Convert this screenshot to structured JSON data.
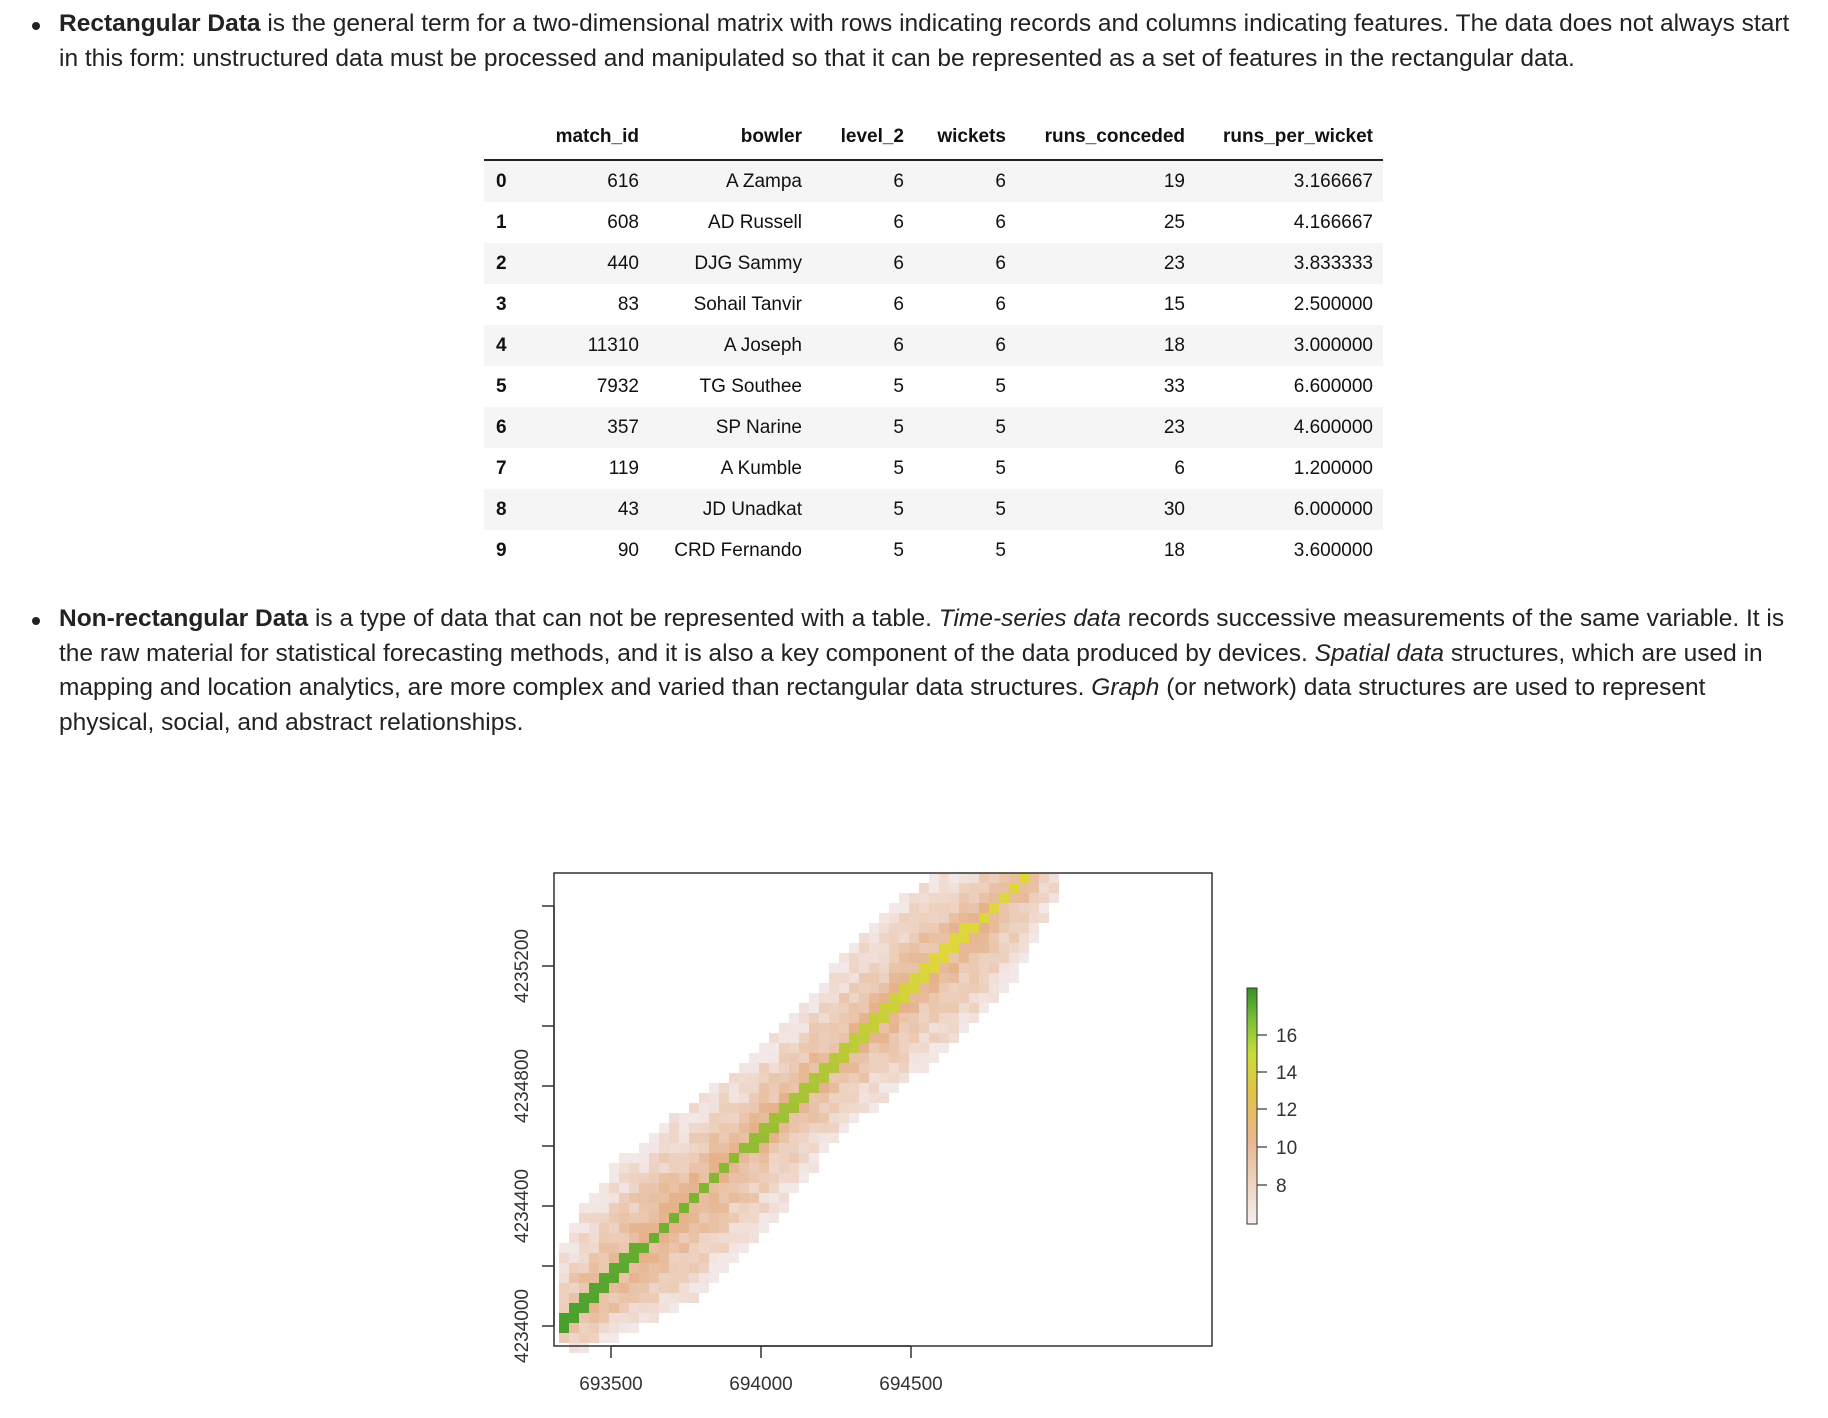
{
  "paragraphs": {
    "rectangular": {
      "term": "Rectangular Data",
      "text": " is the general term for a two-dimensional matrix with rows indicating records and columns indicating features. The data does not always start in this form: unstructured data must be processed and manipulated so that it can be represented as a set of features in the rectangular data."
    },
    "nonrectangular": {
      "term": "Non-rectangular Data",
      "t1": " is a type of data that can not be represented with a table. ",
      "e1": "Time-series data",
      "t2": " records successive measurements of the same variable. It is the raw material for statistical forecasting methods, and it is also a key component of the data produced by devices. ",
      "e2": "Spatial data",
      "t3": " structures, which are used in mapping and location analytics, are more complex and varied than rectangular data structures. ",
      "e3": "Graph",
      "t4": " (or network) data structures are used to represent physical, social, and abstract relationships."
    }
  },
  "table": {
    "columns": [
      "match_id",
      "bowler",
      "level_2",
      "wickets",
      "runs_conceded",
      "runs_per_wicket"
    ],
    "rows": [
      {
        "idx": "0",
        "match_id": "616",
        "bowler": "A Zampa",
        "level_2": "6",
        "wickets": "6",
        "runs_conceded": "19",
        "runs_per_wicket": "3.166667"
      },
      {
        "idx": "1",
        "match_id": "608",
        "bowler": "AD Russell",
        "level_2": "6",
        "wickets": "6",
        "runs_conceded": "25",
        "runs_per_wicket": "4.166667"
      },
      {
        "idx": "2",
        "match_id": "440",
        "bowler": "DJG Sammy",
        "level_2": "6",
        "wickets": "6",
        "runs_conceded": "23",
        "runs_per_wicket": "3.833333"
      },
      {
        "idx": "3",
        "match_id": "83",
        "bowler": "Sohail Tanvir",
        "level_2": "6",
        "wickets": "6",
        "runs_conceded": "15",
        "runs_per_wicket": "2.500000"
      },
      {
        "idx": "4",
        "match_id": "11310",
        "bowler": "A Joseph",
        "level_2": "6",
        "wickets": "6",
        "runs_conceded": "18",
        "runs_per_wicket": "3.000000"
      },
      {
        "idx": "5",
        "match_id": "7932",
        "bowler": "TG Southee",
        "level_2": "5",
        "wickets": "5",
        "runs_conceded": "33",
        "runs_per_wicket": "6.600000"
      },
      {
        "idx": "6",
        "match_id": "357",
        "bowler": "SP Narine",
        "level_2": "5",
        "wickets": "5",
        "runs_conceded": "23",
        "runs_per_wicket": "4.600000"
      },
      {
        "idx": "7",
        "match_id": "119",
        "bowler": "A Kumble",
        "level_2": "5",
        "wickets": "5",
        "runs_conceded": "6",
        "runs_per_wicket": "1.200000"
      },
      {
        "idx": "8",
        "match_id": "43",
        "bowler": "JD Unadkat",
        "level_2": "5",
        "wickets": "5",
        "runs_conceded": "30",
        "runs_per_wicket": "6.000000"
      },
      {
        "idx": "9",
        "match_id": "90",
        "bowler": "CRD Fernando",
        "level_2": "5",
        "wickets": "5",
        "runs_conceded": "18",
        "runs_per_wicket": "3.600000"
      }
    ]
  },
  "raster_plot": {
    "x_ticks": [
      "693500",
      "694000",
      "694500"
    ],
    "y_ticks": [
      "4234000",
      "4234400",
      "4234800",
      "4235200"
    ],
    "legend_ticks": [
      "8",
      "10",
      "12",
      "14",
      "16"
    ],
    "colors": {
      "low": "#f2e6e6",
      "mid": "#e6b48a",
      "high_yellow": "#e0d93a",
      "top_green": "#3d9b2a"
    }
  }
}
